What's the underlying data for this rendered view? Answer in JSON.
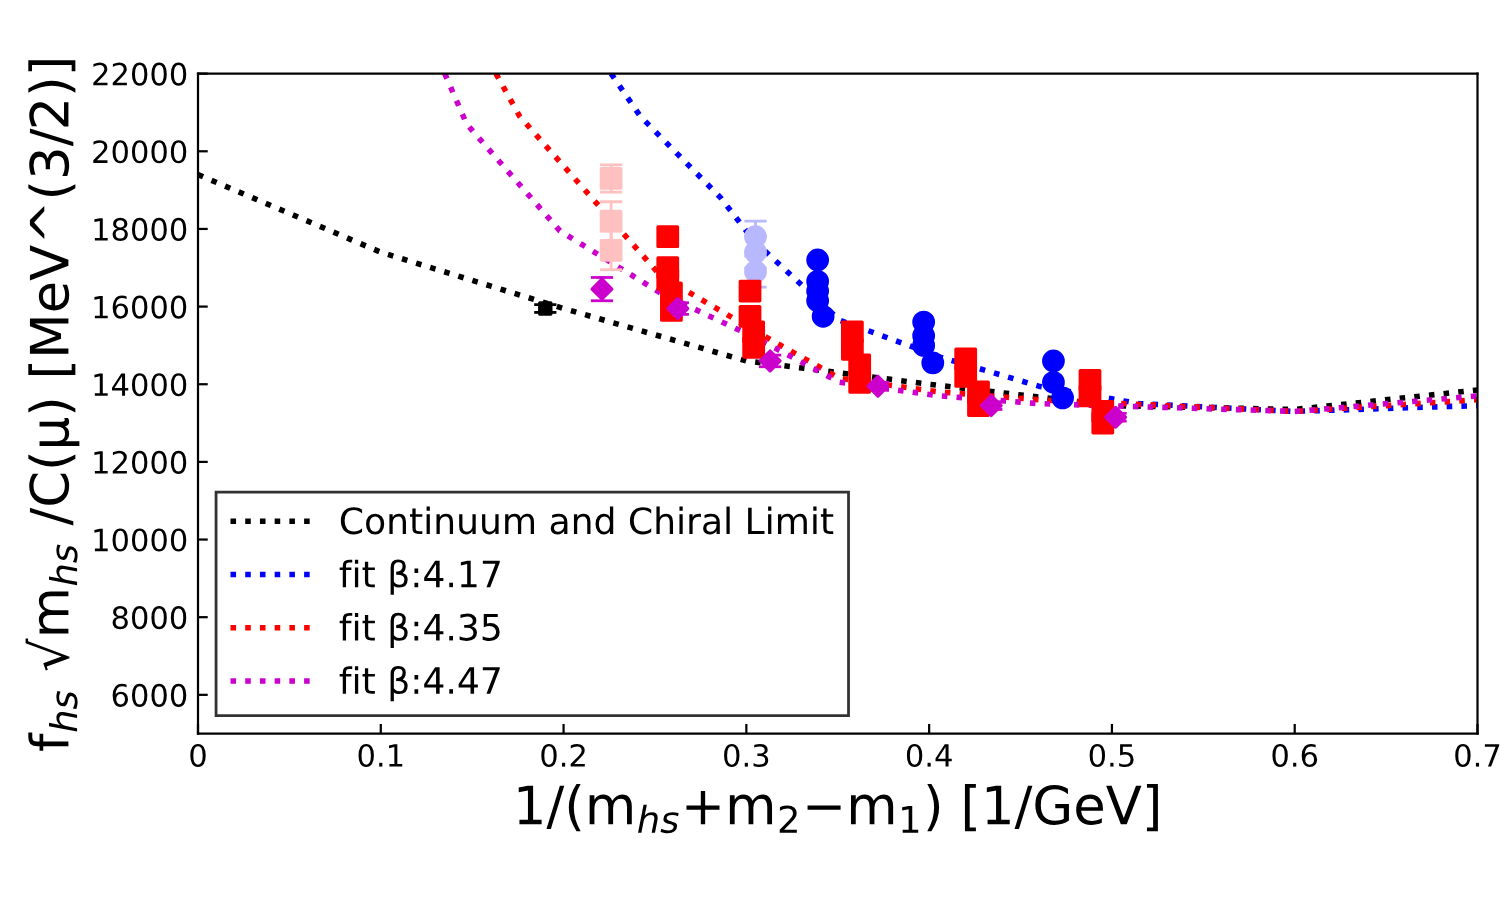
{
  "chart_data": {
    "type": "scatter",
    "xlabel": "1/(m$_{hs}$+m$_{2}$−m$_{1}$) [1/GeV]",
    "ylabel": "f$_{hs}$ √m$_{hs}$ /C(μ) [MeV^(3/2)]",
    "xlim": [
      0,
      0.7
    ],
    "ylim": [
      5000,
      22000
    ],
    "xticks": [
      0,
      0.1,
      0.2,
      0.3,
      0.4,
      0.5,
      0.6,
      0.7
    ],
    "yticks": [
      6000,
      8000,
      10000,
      12000,
      14000,
      16000,
      18000,
      20000,
      22000
    ],
    "grid": false,
    "legend": "bottom left",
    "series": [
      {
        "name": "Continuum and Chiral Limit",
        "type": "line",
        "line_style": "dotted",
        "marker": "none",
        "color": "#000000",
        "x": [
          0,
          0.1,
          0.2,
          0.3,
          0.4,
          0.5,
          0.6,
          0.7
        ],
        "values": [
          19400,
          17400,
          15950,
          14600,
          14000,
          13450,
          13350,
          13850
        ]
      },
      {
        "name": "fit β:4.17",
        "type": "line",
        "line_style": "dotted",
        "marker": "none",
        "color": "#0000ff",
        "x": [
          0.226,
          0.242,
          0.286,
          0.304,
          0.351,
          0.406,
          0.46,
          0.515,
          0.6,
          0.7
        ],
        "values": [
          22000,
          20900,
          18800,
          17700,
          15650,
          14700,
          13950,
          13500,
          13300,
          13450
        ]
      },
      {
        "name": "fit β:4.35",
        "type": "line",
        "line_style": "dotted",
        "marker": "none",
        "color": "#ff0000",
        "x": [
          0.163,
          0.176,
          0.253,
          0.3,
          0.351,
          0.406,
          0.46,
          0.6,
          0.7
        ],
        "values": [
          22000,
          20900,
          16800,
          15500,
          14150,
          13800,
          13600,
          13300,
          13600
        ]
      },
      {
        "name": "fit β:4.47",
        "type": "line",
        "line_style": "dotted",
        "marker": "none",
        "color": "#cc00cc",
        "x": [
          0.135,
          0.147,
          0.198,
          0.253,
          0.307,
          0.351,
          0.406,
          0.46,
          0.6,
          0.7
        ],
        "values": [
          22000,
          20700,
          17950,
          16350,
          15150,
          14050,
          13700,
          13500,
          13300,
          13700
        ]
      },
      {
        "marker": "square",
        "color": "#ffc0c0",
        "x": [
          0.226,
          0.226,
          0.226
        ],
        "values": [
          19300,
          18200,
          17450
        ],
        "errors": [
          350,
          500,
          500
        ]
      },
      {
        "marker": "circle",
        "color": "#b8b8ff",
        "x": [
          0.305,
          0.305,
          0.305
        ],
        "values": [
          17800,
          17400,
          16900
        ],
        "errors": [
          400,
          400,
          400
        ]
      },
      {
        "marker": "circle",
        "color": "#0000ff",
        "x": [
          0.339,
          0.339,
          0.339,
          0.339,
          0.397,
          0.397,
          0.397,
          0.468,
          0.468
        ],
        "values": [
          17200,
          16650,
          16400,
          16150,
          15600,
          15250,
          15000,
          14600,
          14050
        ]
      },
      {
        "marker": "circle",
        "color": "#0000ff",
        "x": [
          0.342,
          0.402,
          0.473
        ],
        "values": [
          15750,
          14550,
          13650
        ]
      },
      {
        "marker": "square",
        "color": "#ff0000",
        "x": [
          0.257,
          0.257,
          0.257,
          0.302,
          0.302,
          0.358,
          0.358,
          0.42,
          0.42,
          0.488,
          0.488
        ],
        "values": [
          17800,
          17000,
          16700,
          16400,
          15750,
          15350,
          14900,
          14650,
          14200,
          14100,
          13700
        ]
      },
      {
        "marker": "square",
        "color": "#ff0000",
        "x": [
          0.259,
          0.259,
          0.304,
          0.304,
          0.362,
          0.362,
          0.427,
          0.427,
          0.495,
          0.495
        ],
        "values": [
          16350,
          15900,
          15350,
          14950,
          14500,
          14050,
          13800,
          13450,
          13300,
          13000
        ]
      },
      {
        "marker": "diamond",
        "color": "#cc00cc",
        "x": [
          0.221,
          0.2625,
          0.313,
          0.372,
          0.434,
          0.502
        ],
        "values": [
          16450,
          15950,
          14600,
          13950,
          13450,
          13150
        ],
        "errors": [
          300,
          150,
          150,
          100,
          100,
          100
        ]
      },
      {
        "marker": "square",
        "color": "#000000",
        "x": [
          0.19
        ],
        "values": [
          15950
        ],
        "errors": [
          100
        ]
      }
    ]
  }
}
